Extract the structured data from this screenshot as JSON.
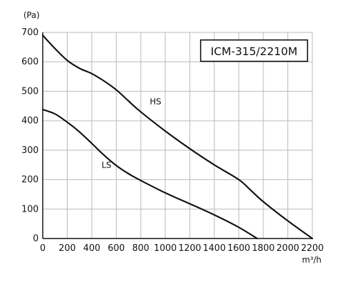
{
  "chart_data": {
    "type": "line",
    "title": "ICM-315/2210M",
    "xlabel": "m³/h",
    "ylabel": "(Pa)",
    "xlim": [
      0,
      2200
    ],
    "ylim": [
      0,
      700
    ],
    "x_ticks": [
      0,
      200,
      400,
      600,
      800,
      1000,
      1200,
      1400,
      1600,
      1800,
      2000,
      2200
    ],
    "y_ticks": [
      0,
      100,
      200,
      300,
      400,
      500,
      600,
      700
    ],
    "x_tick_labels": [
      "0",
      "200",
      "400",
      "600",
      "800",
      "1000",
      "1200",
      "1400",
      "1600",
      "1800",
      "2000",
      "2200"
    ],
    "y_tick_labels": [
      "0",
      "100",
      "200",
      "300",
      "400",
      "500",
      "600",
      "700"
    ],
    "grid": true,
    "series": [
      {
        "name": "HS",
        "x": [
          0,
          100,
          200,
          300,
          400,
          500,
          600,
          700,
          800,
          1000,
          1200,
          1400,
          1600,
          1700,
          1800,
          2000,
          2200
        ],
        "y": [
          690,
          645,
          605,
          578,
          560,
          535,
          505,
          467,
          430,
          365,
          305,
          250,
          200,
          163,
          125,
          60,
          0
        ]
      },
      {
        "name": "LS",
        "x": [
          0,
          100,
          200,
          300,
          400,
          500,
          600,
          700,
          800,
          1000,
          1200,
          1400,
          1600,
          1750
        ],
        "y": [
          438,
          423,
          395,
          362,
          323,
          283,
          248,
          220,
          197,
          155,
          118,
          80,
          38,
          0
        ]
      }
    ]
  }
}
